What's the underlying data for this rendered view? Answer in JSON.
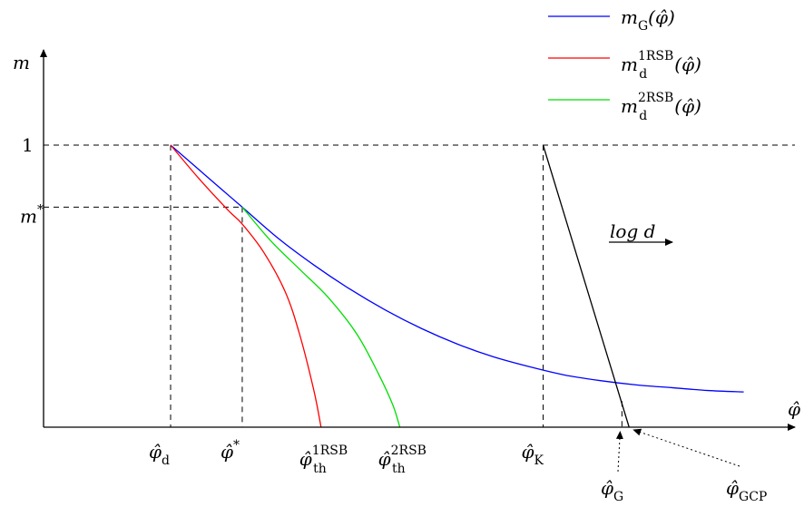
{
  "chart_data": {
    "type": "line",
    "title": "",
    "xlabel": "φ̂",
    "ylabel": "m",
    "scale_note": "log d",
    "colors": {
      "G": "#0000ff",
      "d1RSB": "#ff0000",
      "d2RSB": "#00dd00",
      "K": "#000000"
    },
    "legend": {
      "placement": "top-right",
      "entries": [
        {
          "id": "G",
          "base": "m",
          "sub": "G",
          "sup": "",
          "arg": "(φ̂)"
        },
        {
          "id": "d1RSB",
          "base": "m",
          "sub": "d",
          "sup": "1RSB",
          "arg": "(φ̂)"
        },
        {
          "id": "d2RSB",
          "base": "m",
          "sub": "d",
          "sup": "2RSB",
          "arg": "(φ̂)"
        }
      ]
    },
    "ylim": [
      0,
      1.25
    ],
    "xlim": [
      0,
      10
    ],
    "y_ticks": [
      {
        "value": 1,
        "base": "1",
        "sup": ""
      },
      {
        "value": 0.78,
        "base": "m",
        "sup": "*"
      }
    ],
    "x_ticks": [
      {
        "value": 1.8,
        "base": "φ̂",
        "sub": "d",
        "sup": ""
      },
      {
        "value": 2.8,
        "base": "φ̂",
        "sub": "",
        "sup": "*"
      },
      {
        "value": 3.9,
        "base": "φ̂",
        "sub": "th",
        "sup": "1RSB"
      },
      {
        "value": 5.0,
        "base": "φ̂",
        "sub": "th",
        "sup": "2RSB"
      },
      {
        "value": 7.0,
        "base": "φ̂",
        "sub": "K",
        "sup": ""
      }
    ],
    "arrow_labels": [
      {
        "id": "G",
        "base": "φ̂",
        "sub": "G"
      },
      {
        "id": "GCP",
        "base": "φ̂",
        "sub": "GCP"
      }
    ],
    "series": [
      {
        "id": "G",
        "x": [
          1.8,
          2.3,
          2.8,
          3.3,
          3.8,
          4.3,
          4.8,
          5.3,
          5.8,
          6.3,
          6.8,
          7.3,
          7.8,
          8.3,
          8.8,
          9.3,
          9.8
        ],
        "values": [
          1.0,
          0.89,
          0.78,
          0.67,
          0.575,
          0.49,
          0.415,
          0.35,
          0.295,
          0.25,
          0.215,
          0.185,
          0.165,
          0.15,
          0.14,
          0.13,
          0.125
        ]
      },
      {
        "id": "d1RSB",
        "x": [
          1.8,
          2.2,
          2.6,
          2.8,
          3.1,
          3.4,
          3.6,
          3.8,
          3.9
        ],
        "values": [
          1.0,
          0.88,
          0.77,
          0.72,
          0.62,
          0.48,
          0.33,
          0.13,
          0.0
        ]
      },
      {
        "id": "d2RSB",
        "x": [
          2.8,
          3.2,
          3.6,
          4.0,
          4.4,
          4.7,
          4.9,
          5.0
        ],
        "values": [
          0.78,
          0.66,
          0.56,
          0.46,
          0.33,
          0.19,
          0.08,
          0.0
        ]
      },
      {
        "id": "K",
        "x": [
          7.0,
          8.2
        ],
        "values": [
          1.0,
          0.0
        ]
      }
    ],
    "G_crossing_x": 8.1,
    "GCP_x": 8.2,
    "m_star_x": 2.8,
    "grid": false
  }
}
